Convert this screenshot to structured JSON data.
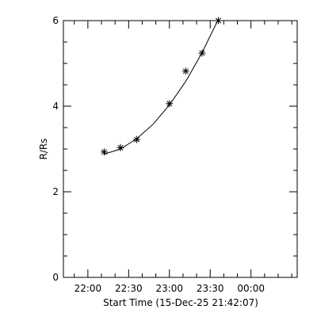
{
  "chart_data": {
    "type": "scatter",
    "title": "",
    "xlabel": "Start Time (15-Dec-25 21:42:07)",
    "ylabel": "R/Rs",
    "xlim": [
      "21:42",
      "00:34"
    ],
    "ylim": [
      0,
      6
    ],
    "x_ticks": [
      "22:00",
      "22:30",
      "23:00",
      "23:30",
      "00:00"
    ],
    "y_ticks": [
      "0",
      "2",
      "4",
      "6"
    ],
    "grid": false,
    "legend": "none",
    "colors": {
      "axes": "#000000",
      "markers": "#000000",
      "fit_line": "#000000"
    },
    "series": [
      {
        "marker": "asterisk",
        "points": [
          {
            "x": "22:12",
            "y": 2.93
          },
          {
            "x": "22:24",
            "y": 3.03
          },
          {
            "x": "22:36",
            "y": 3.22
          },
          {
            "x": "23:00",
            "y": 4.06
          },
          {
            "x": "23:12",
            "y": 4.82
          },
          {
            "x": "23:24",
            "y": 5.24
          },
          {
            "x": "23:36",
            "y": 6.0
          }
        ]
      },
      {
        "style": "line",
        "points": [
          {
            "x": "22:12",
            "y": 2.88
          },
          {
            "x": "22:24",
            "y": 3.0
          },
          {
            "x": "22:36",
            "y": 3.24
          },
          {
            "x": "22:48",
            "y": 3.58
          },
          {
            "x": "23:00",
            "y": 4.03
          },
          {
            "x": "23:12",
            "y": 4.58
          },
          {
            "x": "23:24",
            "y": 5.25
          },
          {
            "x": "23:36",
            "y": 6.03
          }
        ]
      }
    ]
  }
}
